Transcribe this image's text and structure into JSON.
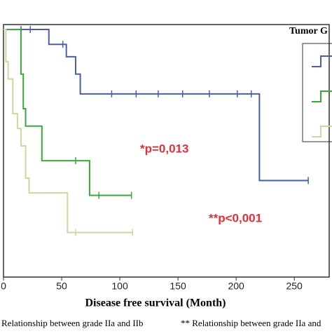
{
  "chart_data": {
    "type": "survival",
    "legend_title": "Tumor G",
    "xlabel": "Disease free survival (Month)",
    "xlim": [
      0,
      280
    ],
    "ylim": [
      0,
      1.02
    ],
    "xticks": [
      0,
      50,
      100,
      150,
      200,
      250
    ],
    "series": [
      {
        "color": "#4a5fa8",
        "x": [
          0,
          39,
          54,
          62,
          66,
          220,
          262
        ],
        "values": [
          1,
          0.94,
          0.89,
          0.82,
          0.74,
          0.39,
          0.39
        ],
        "censor_x": [
          15,
          23,
          51,
          93,
          114,
          133,
          154,
          177,
          201,
          213,
          262
        ],
        "censor_values": [
          1,
          1,
          0.94,
          0.74,
          0.74,
          0.74,
          0.74,
          0.74,
          0.74,
          0.74,
          0.39
        ]
      },
      {
        "color": "#3aa83a",
        "x": [
          0,
          15,
          17,
          19,
          33,
          74,
          110
        ],
        "values": [
          1,
          0.82,
          0.68,
          0.61,
          0.47,
          0.33,
          0.33
        ],
        "censor_x": [
          62,
          82,
          110
        ],
        "censor_values": [
          0.47,
          0.33,
          0.33
        ]
      },
      {
        "color": "#d4d4a0",
        "x": [
          0,
          2,
          4,
          8,
          12,
          15,
          19,
          22,
          55,
          111
        ],
        "values": [
          1,
          0.87,
          0.8,
          0.66,
          0.6,
          0.53,
          0.4,
          0.34,
          0.18,
          0.18
        ],
        "censor_x": [
          62,
          111
        ],
        "censor_values": [
          0.18,
          0.18
        ]
      }
    ],
    "annotations": [
      "*p=0,013",
      "**p<0,001"
    ],
    "footnotes": [
      "Relationship between grade IIa and IIb",
      "** Relationship between grade IIa and"
    ]
  }
}
